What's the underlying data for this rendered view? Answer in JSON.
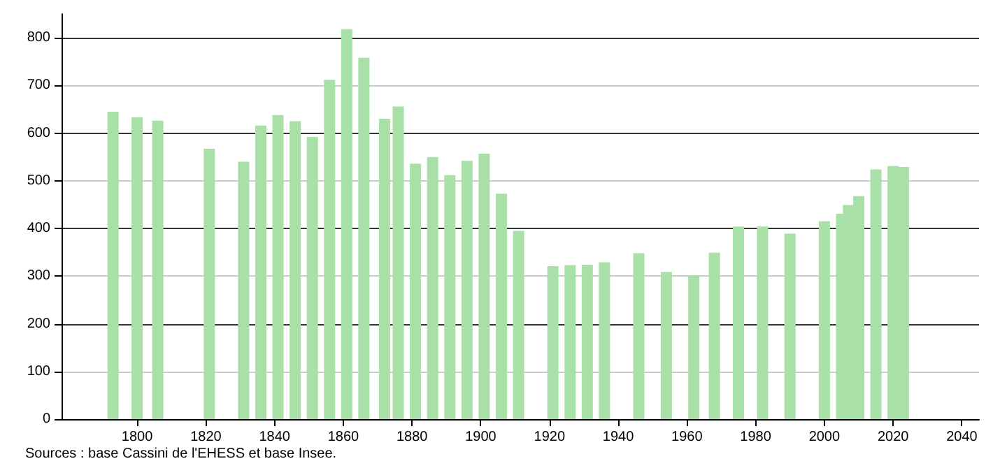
{
  "chart_data": {
    "type": "bar",
    "x": [
      1793,
      1800,
      1806,
      1821,
      1831,
      1836,
      1841,
      1846,
      1851,
      1856,
      1861,
      1866,
      1872,
      1876,
      1881,
      1886,
      1891,
      1896,
      1901,
      1906,
      1911,
      1921,
      1926,
      1931,
      1936,
      1946,
      1954,
      1962,
      1968,
      1975,
      1982,
      1990,
      2000,
      2005,
      2007,
      2010,
      2015,
      2020,
      2023
    ],
    "values": [
      645,
      633,
      626,
      567,
      540,
      616,
      638,
      625,
      592,
      712,
      818,
      758,
      630,
      656,
      536,
      550,
      512,
      542,
      557,
      473,
      395,
      321,
      323,
      324,
      329,
      348,
      309,
      302,
      349,
      404,
      404,
      389,
      415,
      431,
      449,
      468,
      524,
      531,
      529
    ],
    "color": "#a8e0a8",
    "xlim": [
      1778,
      2045
    ],
    "xticks": [
      1800,
      1820,
      1840,
      1860,
      1880,
      1900,
      1920,
      1940,
      1960,
      1980,
      2000,
      2020,
      2040
    ],
    "ylim": [
      0,
      850
    ],
    "yticks": [
      0,
      100,
      200,
      300,
      400,
      500,
      600,
      700,
      800
    ],
    "grid": "y",
    "annotations": [
      "Sources : base Cassini de l'EHESS et base Insee."
    ]
  }
}
